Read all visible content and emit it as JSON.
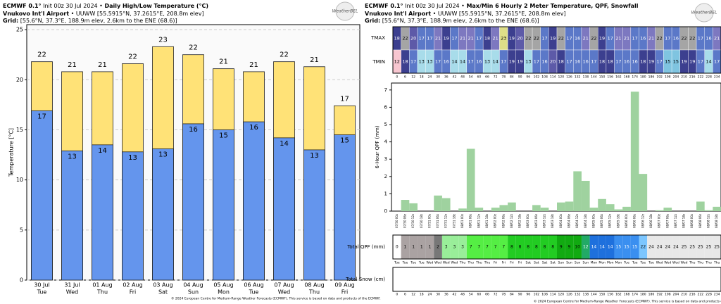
{
  "chart_data": [
    {
      "type": "bar",
      "model": "ECMWF 0.1°",
      "init": "Init 00z 30 Jul 2024 •",
      "title": "Daily High/Low Temperature (°C)",
      "location": "Vnukovo Int'l Airport",
      "coords": "• UUWW [55.5915°N, 37.2615°E, 208.8m elev]",
      "grid_label": "Grid:",
      "grid_info": "[55.6°N, 37.3°E, 188.9m elev, 2.6km to the ENE (68.6)]",
      "logo": "WeatherBEL",
      "ylabel": "Temperature [°C]",
      "categories": [
        "30 Jul",
        "31 Jul",
        "01 Aug",
        "02 Aug",
        "03 Aug",
        "04 Aug",
        "05 Aug",
        "06 Aug",
        "07 Aug",
        "08 Aug",
        "09 Aug"
      ],
      "weekdays": [
        "Tue",
        "Wed",
        "Thu",
        "Fri",
        "Sat",
        "Sun",
        "Mon",
        "Tue",
        "Wed",
        "Thu",
        "Fri"
      ],
      "series": [
        {
          "name": "High",
          "color": "#ffe277",
          "values": [
            21.8,
            20.8,
            20.8,
            21.6,
            23.3,
            22.5,
            21.1,
            20.8,
            21.8,
            21.3,
            17.4
          ],
          "value_labels": [
            "22",
            "21",
            "21",
            "22",
            "23",
            "22",
            "21",
            "21",
            "22",
            "21",
            "17"
          ]
        },
        {
          "name": "Low",
          "color": "#6495ed",
          "values": [
            16.9,
            12.9,
            13.5,
            12.8,
            13.1,
            15.6,
            15.0,
            15.8,
            14.2,
            13.0,
            14.5
          ],
          "value_labels": [
            "17",
            "13",
            "14",
            "13",
            "13",
            "16",
            "15",
            "16",
            "14",
            "13",
            "15"
          ]
        }
      ],
      "ylim": [
        0,
        25.5
      ],
      "yticks": [
        0,
        5,
        10,
        15,
        20,
        25
      ],
      "grid": true,
      "footer": "© 2024 European Centre for Medium-Range Weather Forecasts (ECMWF). This service is based on data and products of the ECMWF."
    },
    {
      "type": "bar",
      "model": "ECMWF 0.1°",
      "init": "Init 00z 30 Jul 2024 •",
      "title": "Max/Min 6 Hourly 2 Meter Temperature,  QPF,  Snowfall",
      "location": "Vnukovo Int'l Airport",
      "coords": "• UUWW [55.5915°N, 37.2615°E, 208.8m elev]",
      "grid_label": "Grid:",
      "grid_info": "[55.6°N, 37.3°E, 188.9m elev, 2.6km to the ENE (68.6)]",
      "logo": "WeatherBEL",
      "ylabel": "6-Hour QPF (mm)",
      "categories": [
        "07/30 00z",
        "07/30 06z",
        "07/30 12z",
        "07/30 18z",
        "07/31 00z",
        "07/31 06z",
        "07/31 12z",
        "07/31 18z",
        "08/01 00z",
        "08/01 06z",
        "08/01 12z",
        "08/01 18z",
        "08/02 00z",
        "08/02 06z",
        "08/02 12z",
        "08/02 18z",
        "08/03 00z",
        "08/03 06z",
        "08/03 12z",
        "08/03 18z",
        "08/04 00z",
        "08/04 06z",
        "08/04 12z",
        "08/04 18z",
        "08/05 00z",
        "08/05 06z",
        "08/05 12z",
        "08/05 18z",
        "08/06 00z",
        "08/06 06z",
        "08/06 12z",
        "08/06 18z",
        "08/07 00z",
        "08/07 06z",
        "08/07 12z",
        "08/07 18z",
        "08/08 00z",
        "08/08 06z",
        "08/08 12z",
        "08/08 18z"
      ],
      "values": [
        0,
        0.65,
        0.45,
        0,
        0,
        0.9,
        0.75,
        0,
        0.15,
        3.6,
        0.2,
        0,
        0.2,
        0.35,
        0.5,
        0,
        0,
        0.35,
        0.2,
        0,
        0.5,
        0.55,
        2.3,
        1.75,
        0.2,
        0.7,
        0.4,
        0.1,
        0.25,
        6.9,
        2.15,
        0,
        0.05,
        0.2,
        0,
        0,
        0,
        0.55,
        0.05,
        0.25
      ],
      "color": "#9fd29f",
      "ylim": [
        0,
        7.4
      ],
      "yticks": [
        0,
        1,
        2,
        3,
        4,
        5,
        6,
        7
      ],
      "footer": "© 2024 European Centre for Medium-Range Weather Forecasts (ECMWF). This service is based on data and products of the ECMWF."
    }
  ],
  "meteogram": {
    "tmax_label": "TMAX",
    "tmin_label": "TMIN",
    "qpf_label": "Total QPF (mm)",
    "snow_label": "Total Snow (cm)",
    "hours": [
      0,
      6,
      12,
      18,
      24,
      30,
      36,
      42,
      48,
      54,
      60,
      66,
      72,
      78,
      84,
      90,
      96,
      102,
      108,
      114,
      120,
      126,
      132,
      138,
      144,
      150,
      156,
      162,
      168,
      174,
      180,
      186,
      192,
      198,
      204,
      210,
      216,
      222,
      228,
      234
    ],
    "weekdays": [
      "Tue",
      "Tue",
      "Tue",
      "Tue",
      "Wed",
      "Wed",
      "Wed",
      "Wed",
      "Thu",
      "Thu",
      "Thu",
      "Thu",
      "Fri",
      "Fri",
      "Fri",
      "Fri",
      "Sat",
      "Sat",
      "Sat",
      "Sat",
      "Sun",
      "Sun",
      "Sun",
      "Sun",
      "Mon",
      "Mon",
      "Mon",
      "Mon",
      "Tue",
      "Tue",
      "Tue",
      "Tue",
      "Wed",
      "Wed",
      "Wed",
      "Wed",
      "Thu",
      "Thu",
      "Thu",
      "Thu"
    ],
    "tmax": [
      18,
      22,
      20,
      17,
      17,
      21,
      19,
      17,
      21,
      21,
      17,
      18,
      21,
      23,
      19,
      20,
      22,
      22,
      17,
      19,
      22,
      17,
      16,
      21,
      22,
      19,
      17,
      21,
      21,
      17,
      16,
      21,
      22,
      17,
      16,
      22,
      22,
      17,
      16,
      21
    ],
    "tmin": [
      12,
      18,
      17,
      13,
      13,
      17,
      16,
      14,
      14,
      17,
      16,
      13,
      14,
      17,
      19,
      19,
      13,
      17,
      16,
      20,
      18,
      17,
      16,
      16,
      17,
      18,
      18,
      17,
      16,
      16,
      18,
      19,
      17,
      15,
      15,
      19,
      19,
      17,
      14,
      17
    ],
    "total_qpf": [
      0,
      1,
      1,
      1,
      1,
      2,
      3,
      3,
      3,
      7,
      7,
      7,
      7,
      7,
      8,
      8,
      8,
      8,
      8,
      8,
      9,
      9,
      10,
      12,
      14,
      14,
      14,
      15,
      15,
      15,
      22,
      24,
      24,
      24,
      24,
      25,
      25,
      25,
      25,
      25
    ]
  }
}
